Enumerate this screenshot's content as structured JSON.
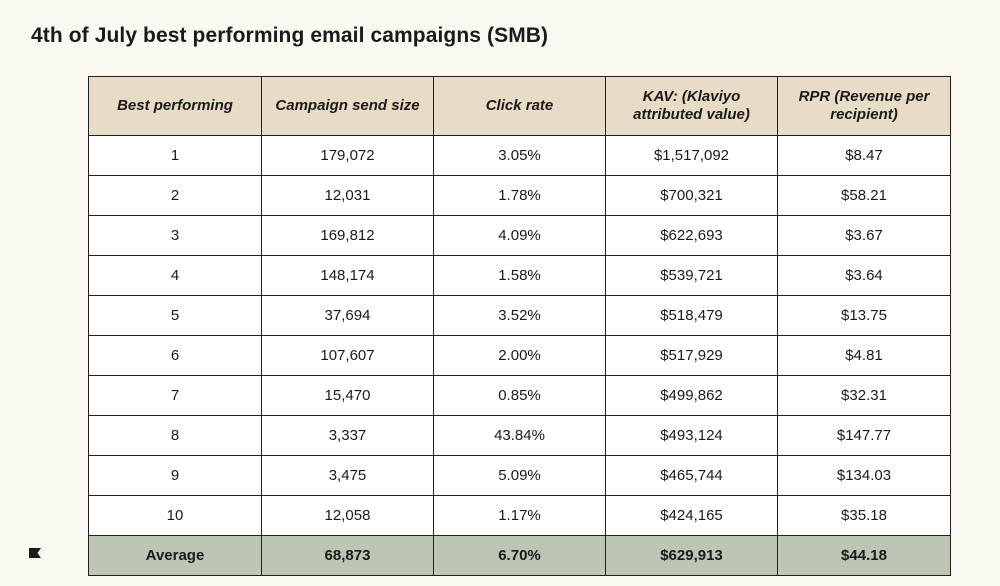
{
  "title": "4th of July best performing email campaigns (SMB)",
  "brand_colors": {
    "background": "#fbf8f2",
    "header_fill": "#e8dcc7",
    "average_fill": "#bcc6b3",
    "border": "#1f1f1f"
  },
  "icons": {
    "logo": "klaviyo-flag-logo-icon"
  },
  "chart_data": {
    "type": "table",
    "title": "4th of July best performing email campaigns (SMB)",
    "columns": [
      "Best performing",
      "Campaign send size",
      "Click rate",
      "KAV: (Klaviyo attributed value)",
      "RPR (Revenue per recipient)"
    ],
    "rows": [
      [
        "1",
        "179,072",
        "3.05%",
        "$1,517,092",
        "$8.47"
      ],
      [
        "2",
        "12,031",
        "1.78%",
        "$700,321",
        "$58.21"
      ],
      [
        "3",
        "169,812",
        "4.09%",
        "$622,693",
        "$3.67"
      ],
      [
        "4",
        "148,174",
        "1.58%",
        "$539,721",
        "$3.64"
      ],
      [
        "5",
        "37,694",
        "3.52%",
        "$518,479",
        "$13.75"
      ],
      [
        "6",
        "107,607",
        "2.00%",
        "$517,929",
        "$4.81"
      ],
      [
        "7",
        "15,470",
        "0.85%",
        "$499,862",
        "$32.31"
      ],
      [
        "8",
        "3,337",
        "43.84%",
        "$493,124",
        "$147.77"
      ],
      [
        "9",
        "3,475",
        "5.09%",
        "$465,744",
        "$134.03"
      ],
      [
        "10",
        "12,058",
        "1.17%",
        "$424,165",
        "$35.18"
      ]
    ],
    "average": [
      "Average",
      "68,873",
      "6.70%",
      "$629,913",
      "$44.18"
    ]
  }
}
